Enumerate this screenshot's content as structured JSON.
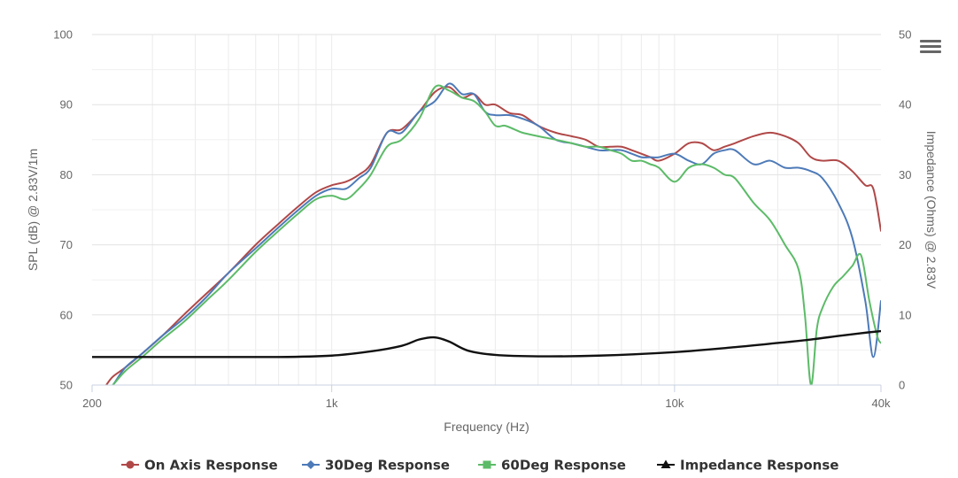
{
  "chart_data": {
    "type": "line",
    "title": "",
    "xlabel": "Frequency (Hz)",
    "ylabel": "SPL (dB) @ 2.83V/1m",
    "y2label": "Impedance (Ohms) @ 2.83V",
    "x_scale": "log",
    "xlim": [
      200,
      40000
    ],
    "ylim": [
      50,
      100
    ],
    "y2lim": [
      0,
      50
    ],
    "x_tick_labels": [
      {
        "value": 200,
        "label": "200"
      },
      {
        "value": 1000,
        "label": "1k"
      },
      {
        "value": 10000,
        "label": "10k"
      },
      {
        "value": 40000,
        "label": "40k"
      }
    ],
    "y_ticks": [
      50,
      60,
      70,
      80,
      90,
      100
    ],
    "y2_ticks": [
      0,
      10,
      20,
      30,
      40,
      50
    ],
    "grid": true,
    "legend_position": "bottom",
    "series": [
      {
        "name": "On Axis Response",
        "color": "#b04848",
        "marker": "circle",
        "axis": "left",
        "x": [
          220,
          230,
          250,
          280,
          320,
          370,
          430,
          500,
          600,
          700,
          800,
          900,
          1000,
          1100,
          1200,
          1300,
          1450,
          1600,
          1800,
          2000,
          2200,
          2400,
          2600,
          2800,
          3000,
          3300,
          3600,
          4000,
          4500,
          5000,
          5500,
          6000,
          6500,
          7000,
          7500,
          8000,
          8500,
          9000,
          10000,
          11000,
          12000,
          13000,
          14000,
          15000,
          17000,
          19000,
          21000,
          23000,
          25000,
          27000,
          30000,
          33000,
          36000,
          38000,
          40000
        ],
        "values": [
          50,
          51.2,
          52.5,
          54.5,
          57,
          60,
          63,
          66,
          70,
          73,
          75.5,
          77.5,
          78.5,
          79,
          80,
          81.5,
          86,
          86.5,
          89,
          91.8,
          92.5,
          91,
          91.5,
          90,
          90,
          88.8,
          88.5,
          87,
          86,
          85.5,
          85,
          84,
          84,
          84,
          83.5,
          83,
          82.5,
          82,
          83,
          84.5,
          84.5,
          83.5,
          84,
          84.5,
          85.5,
          86,
          85.5,
          84.5,
          82.5,
          82,
          82,
          80.5,
          78.5,
          78,
          72
        ]
      },
      {
        "name": "30Deg Response",
        "color": "#4d7ab8",
        "marker": "diamond",
        "axis": "left",
        "x": [
          220,
          230,
          250,
          280,
          320,
          370,
          430,
          500,
          600,
          700,
          800,
          900,
          1000,
          1100,
          1200,
          1300,
          1450,
          1600,
          1800,
          2000,
          2200,
          2400,
          2600,
          2800,
          3000,
          3300,
          3600,
          4000,
          4500,
          5000,
          5500,
          6000,
          6500,
          7000,
          7500,
          8000,
          8500,
          9000,
          10000,
          11000,
          12000,
          13000,
          14000,
          15000,
          17000,
          19000,
          21000,
          23000,
          25000,
          27000,
          30000,
          33000,
          36000,
          38000,
          40000
        ],
        "values": [
          49,
          50,
          52.5,
          54.5,
          57,
          59.5,
          62.5,
          66,
          69.5,
          72.5,
          75,
          77,
          78,
          78,
          79.5,
          81,
          86,
          86,
          89,
          90.5,
          93,
          91.5,
          91.5,
          89,
          88.5,
          88.5,
          88,
          87,
          85,
          84.5,
          84,
          83.5,
          83.5,
          83.5,
          83,
          82.5,
          82.5,
          82.5,
          83,
          82,
          81.5,
          83,
          83.5,
          83.5,
          81.5,
          82,
          81,
          81,
          80.5,
          79.5,
          76,
          71,
          62,
          54,
          62
        ]
      },
      {
        "name": "60Deg Response",
        "color": "#5cbb68",
        "marker": "square",
        "axis": "left",
        "x": [
          220,
          230,
          250,
          280,
          320,
          370,
          430,
          500,
          600,
          700,
          800,
          900,
          1000,
          1100,
          1200,
          1300,
          1450,
          1600,
          1800,
          2000,
          2200,
          2400,
          2600,
          2800,
          3000,
          3200,
          3400,
          3600,
          4000,
          4500,
          5000,
          5500,
          6000,
          6500,
          7000,
          7500,
          8000,
          8500,
          9000,
          10000,
          11000,
          12000,
          13000,
          14000,
          15000,
          17000,
          19000,
          21000,
          23000,
          24000,
          25000,
          26000,
          27000,
          29000,
          31000,
          33000,
          35000,
          37000,
          39000,
          40000
        ],
        "values": [
          49,
          50,
          52,
          54,
          56.5,
          59,
          62,
          65,
          69,
          72,
          74.5,
          76.5,
          77,
          76.5,
          78,
          80,
          84,
          85,
          88,
          92.5,
          92,
          91,
          90.5,
          89,
          87,
          87,
          86.5,
          86,
          85.5,
          85,
          84.5,
          84,
          84,
          83.5,
          83,
          82,
          82,
          81.5,
          81,
          79,
          81,
          81.5,
          81,
          80,
          79.5,
          76,
          73.5,
          70,
          66.5,
          60,
          50,
          58,
          61,
          64,
          65.5,
          67,
          68.5,
          62,
          57,
          56
        ]
      },
      {
        "name": "Impedance Response",
        "color": "#111111",
        "marker": "triangle",
        "axis": "right",
        "x": [
          200,
          400,
          700,
          1000,
          1300,
          1600,
          1800,
          2000,
          2200,
          2500,
          3000,
          4000,
          6000,
          10000,
          15000,
          20000,
          25000,
          30000,
          35000,
          40000
        ],
        "values": [
          4,
          4,
          4,
          4.2,
          4.8,
          5.6,
          6.5,
          6.8,
          6.2,
          4.9,
          4.3,
          4.1,
          4.2,
          4.7,
          5.4,
          6,
          6.5,
          7,
          7.4,
          7.7
        ]
      }
    ]
  },
  "menu": {
    "icon": "hamburger-menu-icon"
  }
}
